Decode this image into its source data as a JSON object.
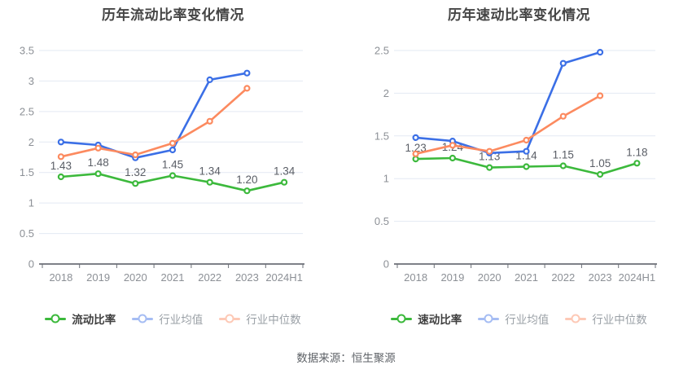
{
  "page": {
    "source_note": "数据来源：恒生聚源"
  },
  "colors": {
    "grid": "#e3e9f3",
    "axis": "#6b6f77",
    "tick_label": "#8c9096",
    "data_label": "#5a5e66",
    "title": "#454545",
    "series_green": "#3cb93c",
    "series_blue": "#3b6fe6",
    "series_orange": "#fc8a5f"
  },
  "chart_data": [
    {
      "type": "line",
      "title": "历年流动比率变化情况",
      "categories": [
        "2018",
        "2019",
        "2020",
        "2021",
        "2022",
        "2023",
        "2024H1"
      ],
      "y_tick_labels": [
        "0",
        "0.5",
        "1",
        "1.5",
        "2",
        "2.5",
        "3",
        "3.5"
      ],
      "ylim": [
        0,
        3.5
      ],
      "grid": true,
      "legend_position": "bottom",
      "series": [
        {
          "name": "流动比率",
          "color": "#3cb93c",
          "values": [
            1.43,
            1.48,
            1.32,
            1.45,
            1.34,
            1.2,
            1.34
          ],
          "point_labels": [
            "1.43",
            "1.48",
            "1.32",
            "1.45",
            "1.34",
            "1.20",
            "1.34"
          ]
        },
        {
          "name": "行业均值",
          "color": "#3b6fe6",
          "values": [
            2.0,
            1.95,
            1.74,
            1.87,
            3.02,
            3.13
          ]
        },
        {
          "name": "行业中位数",
          "color": "#fc8a5f",
          "values": [
            1.76,
            1.9,
            1.79,
            1.98,
            2.34,
            2.88
          ]
        }
      ]
    },
    {
      "type": "line",
      "title": "历年速动比率变化情况",
      "categories": [
        "2018",
        "2019",
        "2020",
        "2021",
        "2022",
        "2023",
        "2024H1"
      ],
      "y_tick_labels": [
        "0",
        "0.5",
        "1",
        "1.5",
        "2",
        "2.5"
      ],
      "ylim": [
        0,
        2.5
      ],
      "grid": true,
      "legend_position": "bottom",
      "series": [
        {
          "name": "速动比率",
          "color": "#3cb93c",
          "values": [
            1.23,
            1.24,
            1.13,
            1.14,
            1.15,
            1.05,
            1.18
          ],
          "point_labels": [
            "1.23",
            "1.24",
            "1.13",
            "1.14",
            "1.15",
            "1.05",
            "1.18"
          ]
        },
        {
          "name": "行业均值",
          "color": "#3b6fe6",
          "values": [
            1.48,
            1.44,
            1.3,
            1.32,
            2.35,
            2.48
          ]
        },
        {
          "name": "行业中位数",
          "color": "#fc8a5f",
          "values": [
            1.29,
            1.39,
            1.32,
            1.45,
            1.73,
            1.97
          ]
        }
      ]
    }
  ]
}
